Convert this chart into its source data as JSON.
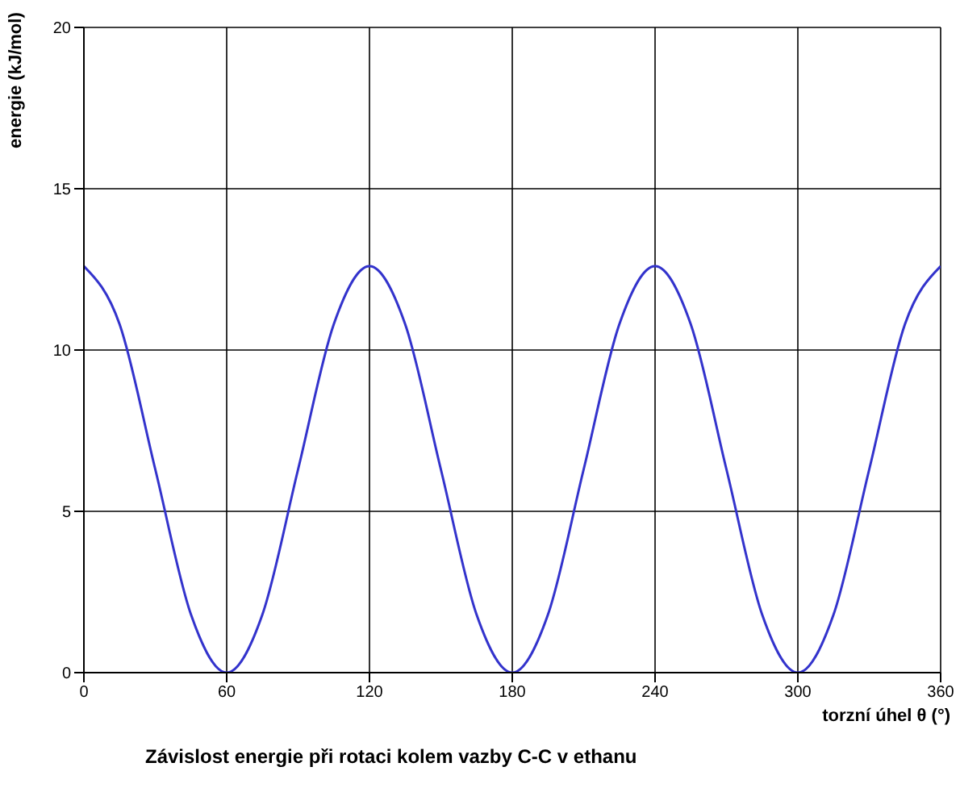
{
  "chart_data": {
    "type": "line",
    "title": "Závislost energie při rotaci kolem vazby C-C v ethanu",
    "xlabel": "torzní úhel θ (°)",
    "ylabel": "energie (kJ/mol)",
    "x": [
      0,
      15,
      30,
      45,
      60,
      75,
      90,
      105,
      120,
      135,
      150,
      165,
      180,
      195,
      210,
      225,
      240,
      255,
      270,
      285,
      300,
      315,
      330,
      345,
      360
    ],
    "series": [
      {
        "color": "#3333cc",
        "values": [
          12.6,
          10.8,
          6.3,
          1.8,
          0,
          1.8,
          6.3,
          10.8,
          12.6,
          10.8,
          6.3,
          1.8,
          0,
          1.8,
          6.3,
          10.8,
          12.6,
          10.8,
          6.3,
          1.8,
          0,
          1.8,
          6.3,
          10.8,
          12.6
        ]
      }
    ],
    "xlim": [
      0,
      360
    ],
    "xticks": [
      0,
      60,
      120,
      180,
      240,
      300,
      360
    ],
    "ylim": [
      0,
      20
    ],
    "yticks": [
      0,
      5,
      10,
      15,
      20
    ],
    "grid": true
  }
}
